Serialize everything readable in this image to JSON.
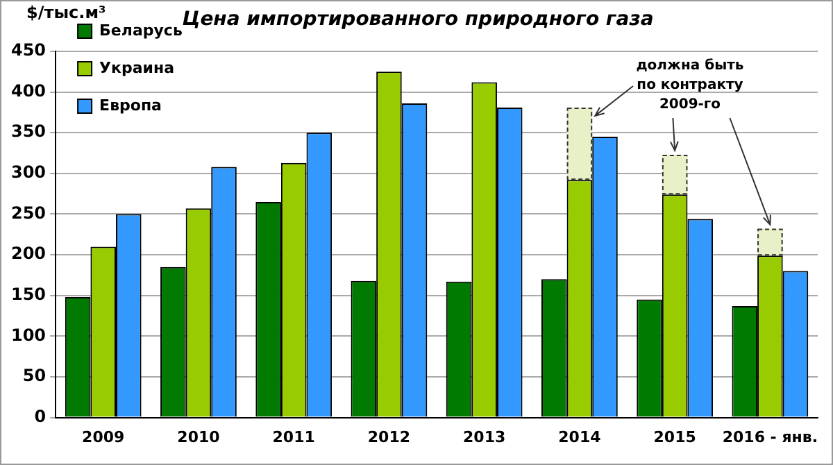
{
  "chart_data": {
    "type": "bar",
    "title": "Цена импортированного природного газа",
    "ylabel": "$/тыс.м³",
    "categories": [
      "2009",
      "2010",
      "2011",
      "2012",
      "2013",
      "2014",
      "2015",
      "2016 - янв."
    ],
    "series": [
      {
        "name": "Беларусь",
        "color": "#007a00",
        "values": [
          148,
          185,
          265,
          168,
          167,
          170,
          145,
          137
        ]
      },
      {
        "name": "Украина",
        "color": "#99cc00",
        "values": [
          210,
          257,
          313,
          425,
          412,
          292,
          274,
          199
        ]
      },
      {
        "name": "Европа",
        "color": "#3399ff",
        "values": [
          250,
          308,
          350,
          386,
          381,
          345,
          244,
          180
        ]
      },
      {
        "color": "#e8f0c8",
        "line_style": "dashed",
        "values": [
          null,
          null,
          null,
          null,
          null,
          89,
          49,
          33
        ],
        "base": [
          null,
          null,
          null,
          null,
          null,
          292,
          274,
          199
        ]
      }
    ],
    "annotations": [
      {
        "text": "должна быть по контракту 2009-го",
        "x": "2016 - янв.",
        "y": 232
      }
    ],
    "ylim": [
      0,
      450
    ],
    "yticks": [
      0,
      50,
      100,
      150,
      200,
      250,
      300,
      350,
      400,
      450
    ],
    "grid": "y",
    "legend": "top left"
  }
}
